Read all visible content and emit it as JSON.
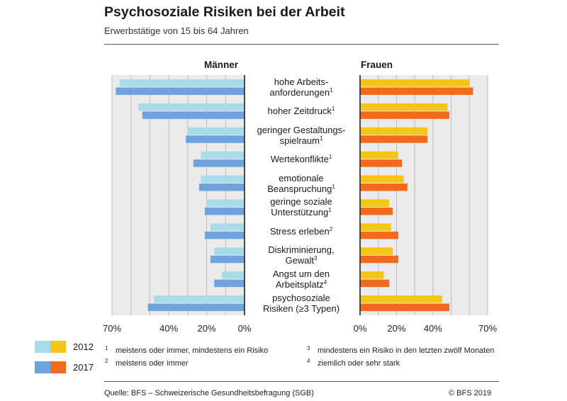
{
  "header": {
    "title": "Psychosoziale Risiken bei der Arbeit",
    "subtitle": "Erwerbstätige von 15 bis 64 Jahren"
  },
  "chart_data": {
    "type": "bar",
    "orientation": "horizontal-butterfly",
    "panels": [
      {
        "title": "Männer",
        "direction": "left",
        "xlim": [
          0,
          70
        ],
        "ticks": [
          "70%",
          "40%",
          "20%",
          "0%"
        ]
      },
      {
        "title": "Frauen",
        "direction": "right",
        "xlim": [
          0,
          70
        ],
        "ticks": [
          "0%",
          "20%",
          "40%",
          "70%"
        ]
      }
    ],
    "categories": [
      {
        "lines": [
          "hohe Arbeits-",
          "anforderungen"
        ],
        "note": "1"
      },
      {
        "lines": [
          "hoher Zeitdruck"
        ],
        "note": "1"
      },
      {
        "lines": [
          "geringer Gestaltungs-",
          "spielraum"
        ],
        "note": "1"
      },
      {
        "lines": [
          "Wertekonflikte"
        ],
        "note": "1"
      },
      {
        "lines": [
          "emotionale",
          "Beanspruchung"
        ],
        "note": "1"
      },
      {
        "lines": [
          "geringe soziale",
          "Unterstützung"
        ],
        "note": "1"
      },
      {
        "lines": [
          "Stress erleben"
        ],
        "note": "2"
      },
      {
        "lines": [
          "Diskriminierung,",
          "Gewalt"
        ],
        "note": "3"
      },
      {
        "lines": [
          "Angst um den",
          "Arbeitsplatz"
        ],
        "note": "4"
      },
      {
        "lines": [
          "psychosoziale",
          "Risiken (≥3 Typen)"
        ],
        "note": ""
      }
    ],
    "series": [
      {
        "name": "2012",
        "group": "Männer",
        "values": [
          66,
          56,
          30,
          23,
          23,
          20,
          18,
          16,
          12,
          48
        ]
      },
      {
        "name": "2017",
        "group": "Männer",
        "values": [
          68,
          54,
          31,
          27,
          24,
          21,
          21,
          18,
          16,
          51
        ]
      },
      {
        "name": "2012",
        "group": "Frauen",
        "values": [
          60,
          48,
          37,
          21,
          24,
          16,
          17,
          18,
          13,
          45
        ]
      },
      {
        "name": "2017",
        "group": "Frauen",
        "values": [
          62,
          49,
          37,
          23,
          26,
          18,
          21,
          21,
          16,
          49
        ]
      }
    ],
    "colors": {
      "Männer": {
        "2012": "#a8dce9",
        "2017": "#6ea3dd"
      },
      "Frauen": {
        "2012": "#f5c518",
        "2017": "#f26b1d"
      },
      "plot_bg": "#ebebeb",
      "grid": "#bdbdbd"
    },
    "grid": true
  },
  "legend": {
    "items": [
      {
        "year": "2012"
      },
      {
        "year": "2017"
      }
    ]
  },
  "footnotes": [
    {
      "num": "1",
      "text": "meistens oder immer, mindestens ein Risiko"
    },
    {
      "num": "2",
      "text": "meistens oder immer"
    },
    {
      "num": "3",
      "text": "mindestens ein Risiko in den letzten zwölf Monaten"
    },
    {
      "num": "4",
      "text": "ziemlich oder sehr stark"
    }
  ],
  "footer": {
    "source": "Quelle: BFS – Schweizerische Gesundheitsbefragung (SGB)",
    "copyright": "© BFS 2019"
  }
}
